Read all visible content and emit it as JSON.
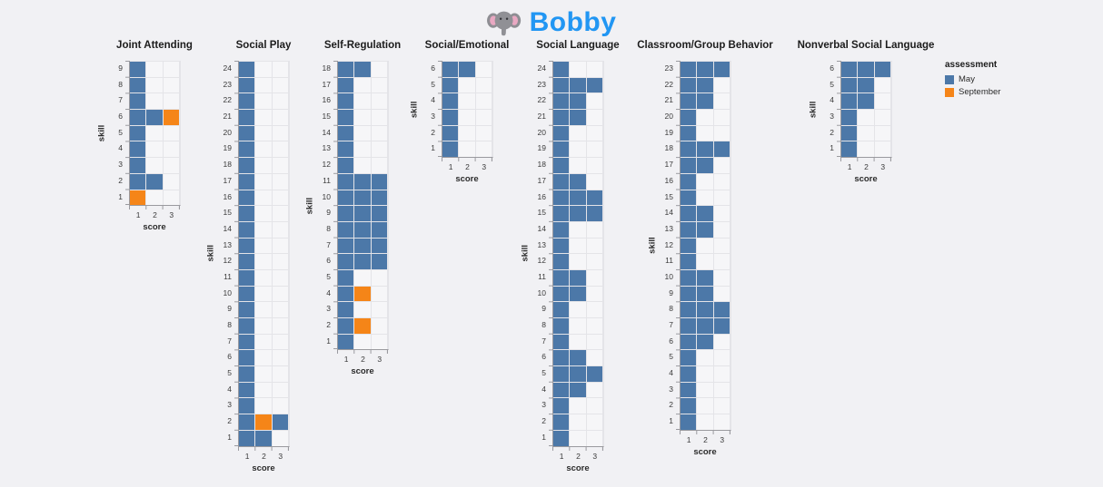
{
  "page": {
    "background": "#f1f1f4"
  },
  "header": {
    "title": "Bobby",
    "title_color": "#2196f3",
    "icon": "elephant-icon"
  },
  "legend": {
    "title": "assessment",
    "items": [
      {
        "label": "May",
        "color": "#4c78a8"
      },
      {
        "label": "September",
        "color": "#f58518"
      }
    ]
  },
  "chart_data": [
    {
      "type": "heatmap",
      "title": "Joint Attending",
      "xlabel": "score",
      "ylabel": "skill",
      "x_ticks": [
        1,
        2,
        3
      ],
      "n_skills": 9,
      "series": [
        {
          "name": "May",
          "color": "#4c78a8",
          "cells": {
            "9": [
              1
            ],
            "8": [
              1
            ],
            "7": [
              1
            ],
            "6": [
              1,
              2
            ],
            "5": [
              1
            ],
            "4": [
              1
            ],
            "3": [
              1
            ],
            "2": [
              1,
              2
            ]
          }
        },
        {
          "name": "September",
          "color": "#f58518",
          "cells": {
            "6": [
              3
            ],
            "1": [
              1
            ]
          }
        }
      ]
    },
    {
      "type": "heatmap",
      "title": "Social Play",
      "xlabel": "score",
      "ylabel": "skill",
      "x_ticks": [
        1,
        2,
        3
      ],
      "n_skills": 24,
      "series": [
        {
          "name": "May",
          "color": "#4c78a8",
          "cells": {
            "24": [
              1
            ],
            "23": [
              1
            ],
            "22": [
              1
            ],
            "21": [
              1
            ],
            "20": [
              1
            ],
            "19": [
              1
            ],
            "18": [
              1
            ],
            "17": [
              1
            ],
            "16": [
              1
            ],
            "15": [
              1
            ],
            "14": [
              1
            ],
            "13": [
              1
            ],
            "12": [
              1
            ],
            "11": [
              1
            ],
            "10": [
              1
            ],
            "9": [
              1
            ],
            "8": [
              1
            ],
            "7": [
              1
            ],
            "6": [
              1
            ],
            "5": [
              1
            ],
            "4": [
              1
            ],
            "3": [
              1
            ],
            "2": [
              1,
              3
            ],
            "1": [
              1,
              2
            ]
          }
        },
        {
          "name": "September",
          "color": "#f58518",
          "cells": {
            "2": [
              2
            ]
          }
        }
      ]
    },
    {
      "type": "heatmap",
      "title": "Self-Regulation",
      "xlabel": "score",
      "ylabel": "skill",
      "x_ticks": [
        1,
        2,
        3
      ],
      "n_skills": 18,
      "series": [
        {
          "name": "May",
          "color": "#4c78a8",
          "cells": {
            "18": [
              1,
              2
            ],
            "17": [
              1
            ],
            "16": [
              1
            ],
            "15": [
              1
            ],
            "14": [
              1
            ],
            "13": [
              1
            ],
            "12": [
              1
            ],
            "11": [
              1,
              2,
              3
            ],
            "10": [
              1,
              2,
              3
            ],
            "9": [
              1,
              2,
              3
            ],
            "8": [
              1,
              2,
              3
            ],
            "7": [
              1,
              2,
              3
            ],
            "6": [
              1,
              2,
              3
            ],
            "5": [
              1
            ],
            "4": [
              1
            ],
            "3": [
              1
            ],
            "2": [
              1
            ],
            "1": [
              1
            ]
          }
        },
        {
          "name": "September",
          "color": "#f58518",
          "cells": {
            "4": [
              2
            ],
            "2": [
              2
            ]
          }
        }
      ]
    },
    {
      "type": "heatmap",
      "title": "Social/Emotional",
      "xlabel": "score",
      "ylabel": "skill",
      "x_ticks": [
        1,
        2,
        3
      ],
      "n_skills": 6,
      "series": [
        {
          "name": "May",
          "color": "#4c78a8",
          "cells": {
            "6": [
              1,
              2
            ],
            "5": [
              1
            ],
            "4": [
              1
            ],
            "3": [
              1
            ],
            "2": [
              1
            ],
            "1": [
              1
            ]
          }
        },
        {
          "name": "September",
          "color": "#f58518",
          "cells": {}
        }
      ]
    },
    {
      "type": "heatmap",
      "title": "Social Language",
      "xlabel": "score",
      "ylabel": "skill",
      "x_ticks": [
        1,
        2,
        3
      ],
      "n_skills": 24,
      "series": [
        {
          "name": "May",
          "color": "#4c78a8",
          "cells": {
            "24": [
              1
            ],
            "23": [
              1,
              2,
              3
            ],
            "22": [
              1,
              2
            ],
            "21": [
              1,
              2
            ],
            "20": [
              1
            ],
            "19": [
              1
            ],
            "18": [
              1
            ],
            "17": [
              1,
              2
            ],
            "16": [
              1,
              2,
              3
            ],
            "15": [
              1,
              2,
              3
            ],
            "14": [
              1
            ],
            "13": [
              1
            ],
            "12": [
              1
            ],
            "11": [
              1,
              2
            ],
            "10": [
              1,
              2
            ],
            "9": [
              1
            ],
            "8": [
              1
            ],
            "7": [
              1
            ],
            "6": [
              1,
              2
            ],
            "5": [
              1,
              2,
              3
            ],
            "4": [
              1,
              2
            ],
            "3": [
              1
            ],
            "2": [
              1
            ],
            "1": [
              1
            ]
          }
        },
        {
          "name": "September",
          "color": "#f58518",
          "cells": {}
        }
      ]
    },
    {
      "type": "heatmap",
      "title": "Classroom/Group Behavior",
      "xlabel": "score",
      "ylabel": "skill",
      "x_ticks": [
        1,
        2,
        3
      ],
      "n_skills": 23,
      "series": [
        {
          "name": "May",
          "color": "#4c78a8",
          "cells": {
            "23": [
              1,
              2,
              3
            ],
            "22": [
              1,
              2
            ],
            "21": [
              1,
              2
            ],
            "20": [
              1
            ],
            "19": [
              1
            ],
            "18": [
              1,
              2,
              3
            ],
            "17": [
              1,
              2
            ],
            "16": [
              1
            ],
            "15": [
              1
            ],
            "14": [
              1,
              2
            ],
            "13": [
              1,
              2
            ],
            "12": [
              1
            ],
            "11": [
              1
            ],
            "10": [
              1,
              2
            ],
            "9": [
              1,
              2
            ],
            "8": [
              1,
              2,
              3
            ],
            "7": [
              1,
              2,
              3
            ],
            "6": [
              1,
              2
            ],
            "5": [
              1
            ],
            "4": [
              1
            ],
            "3": [
              1
            ],
            "2": [
              1
            ],
            "1": [
              1
            ]
          }
        },
        {
          "name": "September",
          "color": "#f58518",
          "cells": {}
        }
      ]
    },
    {
      "type": "heatmap",
      "title": "Nonverbal Social Language",
      "xlabel": "score",
      "ylabel": "skill",
      "x_ticks": [
        1,
        2,
        3
      ],
      "n_skills": 6,
      "series": [
        {
          "name": "May",
          "color": "#4c78a8",
          "cells": {
            "6": [
              1,
              2,
              3
            ],
            "5": [
              1,
              2
            ],
            "4": [
              1,
              2
            ],
            "3": [
              1
            ],
            "2": [
              1
            ],
            "1": [
              1
            ]
          }
        },
        {
          "name": "September",
          "color": "#f58518",
          "cells": {}
        }
      ]
    }
  ]
}
